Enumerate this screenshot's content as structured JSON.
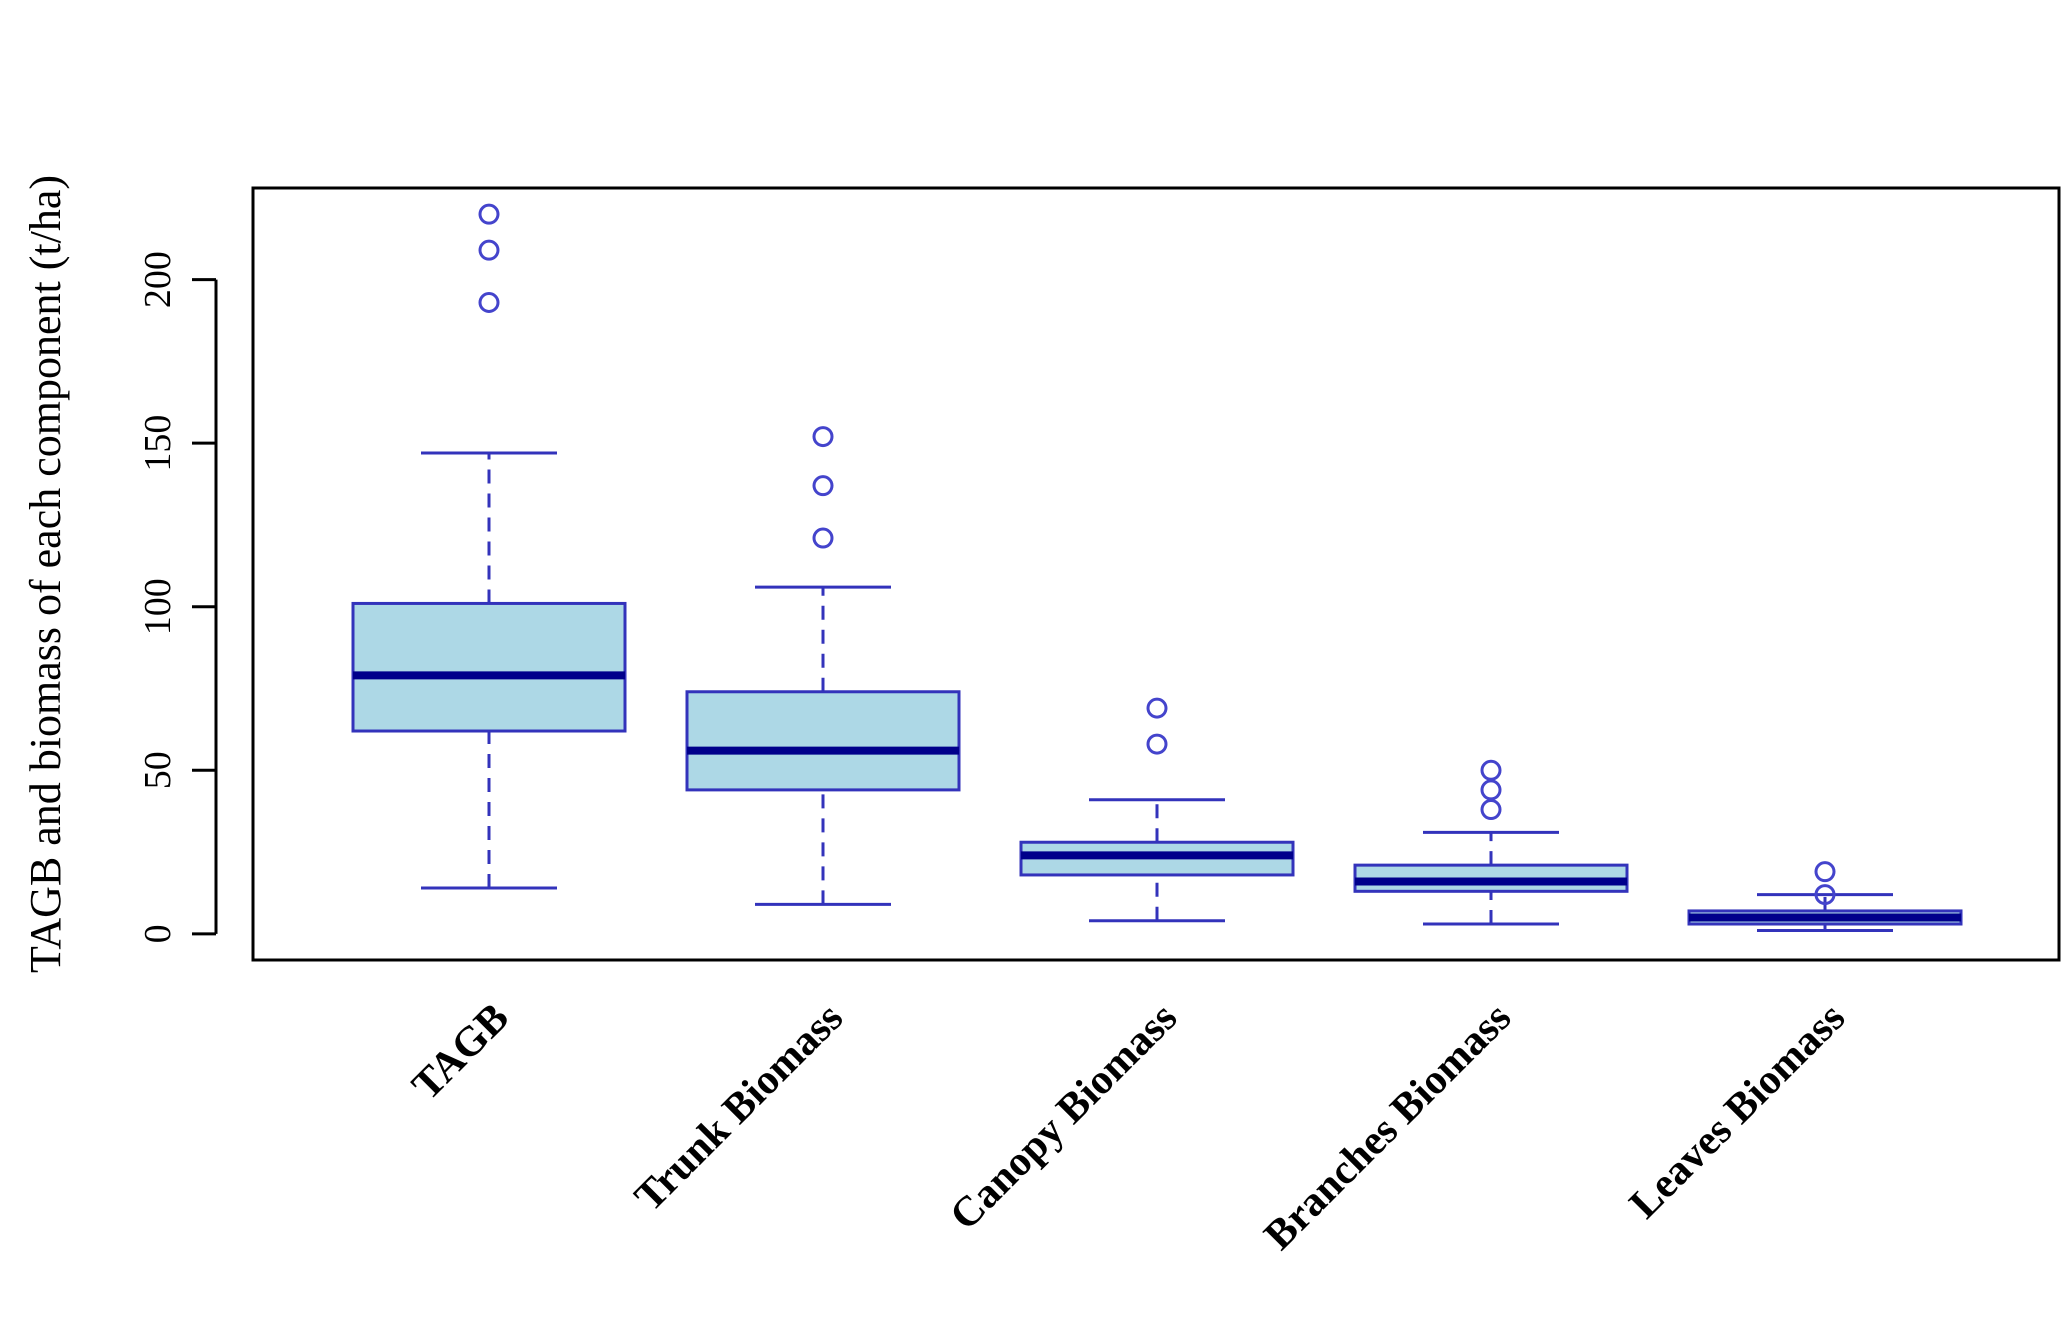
{
  "chart_data": {
    "type": "boxplot",
    "title": "",
    "xlabel": "",
    "ylabel": "TAGB and biomass of each component (t/ha)",
    "ylim": [
      -8,
      228
    ],
    "yticks": [
      0,
      50,
      100,
      150,
      200
    ],
    "categories": [
      "TAGB",
      "Trunk Biomass",
      "Canopy Biomass",
      "Branches Biomass",
      "Leaves Biomass"
    ],
    "boxes": [
      {
        "name": "TAGB",
        "whisker_low": 14,
        "q1": 62,
        "median": 79,
        "q3": 101,
        "whisker_high": 147,
        "outliers": [
          193,
          209,
          220
        ]
      },
      {
        "name": "Trunk Biomass",
        "whisker_low": 9,
        "q1": 44,
        "median": 56,
        "q3": 74,
        "whisker_high": 106,
        "outliers": [
          121,
          137,
          152
        ]
      },
      {
        "name": "Canopy Biomass",
        "whisker_low": 4,
        "q1": 18,
        "median": 24,
        "q3": 28,
        "whisker_high": 41,
        "outliers": [
          58,
          69
        ]
      },
      {
        "name": "Branches Biomass",
        "whisker_low": 3,
        "q1": 13,
        "median": 16,
        "q3": 21,
        "whisker_high": 31,
        "outliers": [
          38,
          44,
          50
        ]
      },
      {
        "name": "Leaves Biomass",
        "whisker_low": 1,
        "q1": 3,
        "median": 5,
        "q3": 7,
        "whisker_high": 12,
        "outliers": [
          12,
          19
        ]
      }
    ],
    "colors": {
      "box_fill": "#add8e6",
      "box_border": "#3333bb",
      "median": "#00008b",
      "outlier": "#4444cc",
      "axis": "#000000"
    }
  }
}
